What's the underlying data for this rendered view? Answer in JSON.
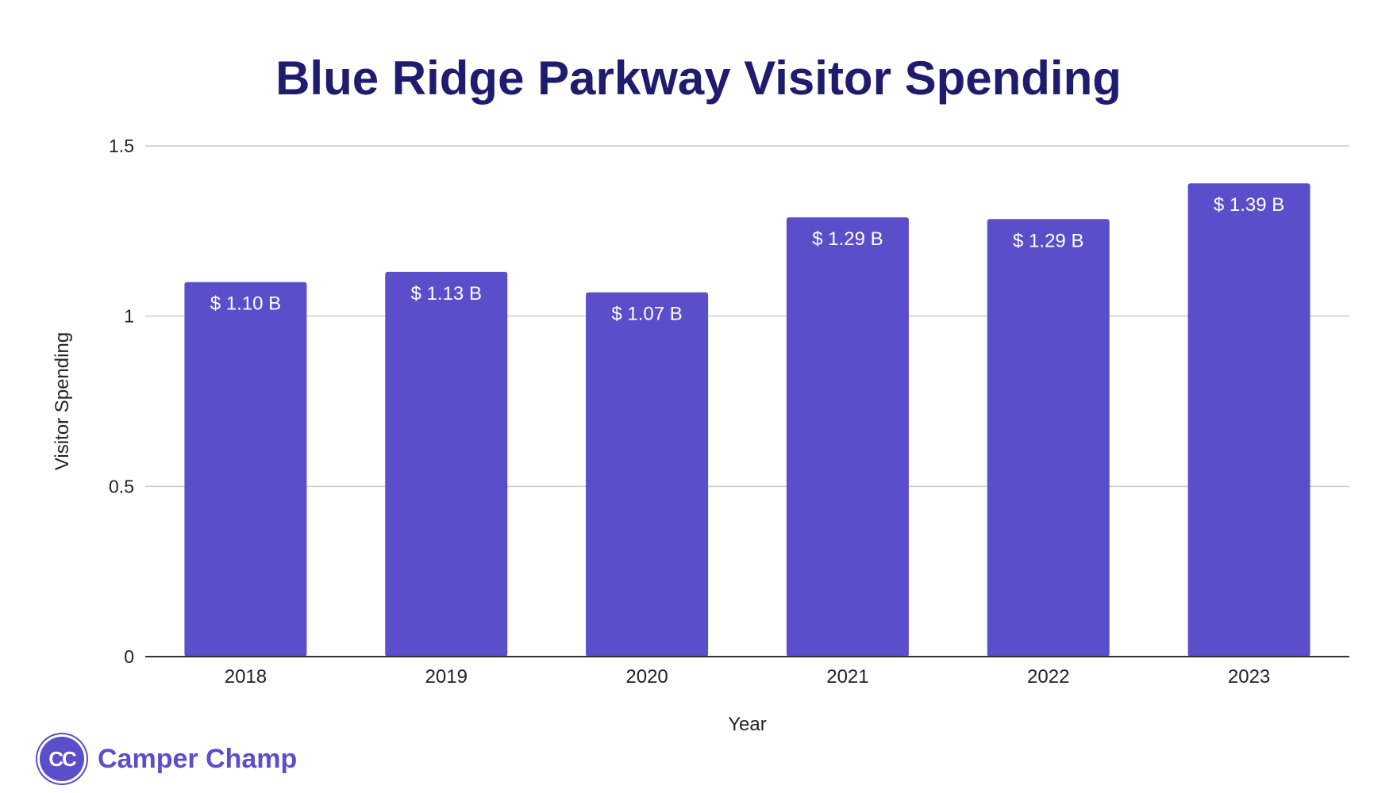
{
  "chart_data": {
    "type": "bar",
    "title": "Blue Ridge Parkway Visitor Spending",
    "xlabel": "Year",
    "ylabel": "Visitor Spending",
    "categories": [
      "2018",
      "2019",
      "2020",
      "2021",
      "2022",
      "2023"
    ],
    "values": [
      1.1,
      1.13,
      1.07,
      1.29,
      1.285,
      1.39
    ],
    "data_labels": [
      "$ 1.10 B",
      "$ 1.13 B",
      "$ 1.07 B",
      "$ 1.29 B",
      "$ 1.29 B",
      "$ 1.39 B"
    ],
    "ylim": [
      0,
      1.5
    ],
    "yticks": [
      0,
      0.5,
      1,
      1.5
    ],
    "ytick_labels": [
      "0",
      "0.5",
      "1",
      "1.5"
    ],
    "grid": true,
    "legend": "none",
    "colors": {
      "bar": "#5b4ecb",
      "title": "#1f1b6e",
      "grid": "#cccccc",
      "axis": "#333333"
    }
  },
  "brand": {
    "logo_text": "CC",
    "name": "Camper Champ",
    "color": "#5b4ecb"
  }
}
